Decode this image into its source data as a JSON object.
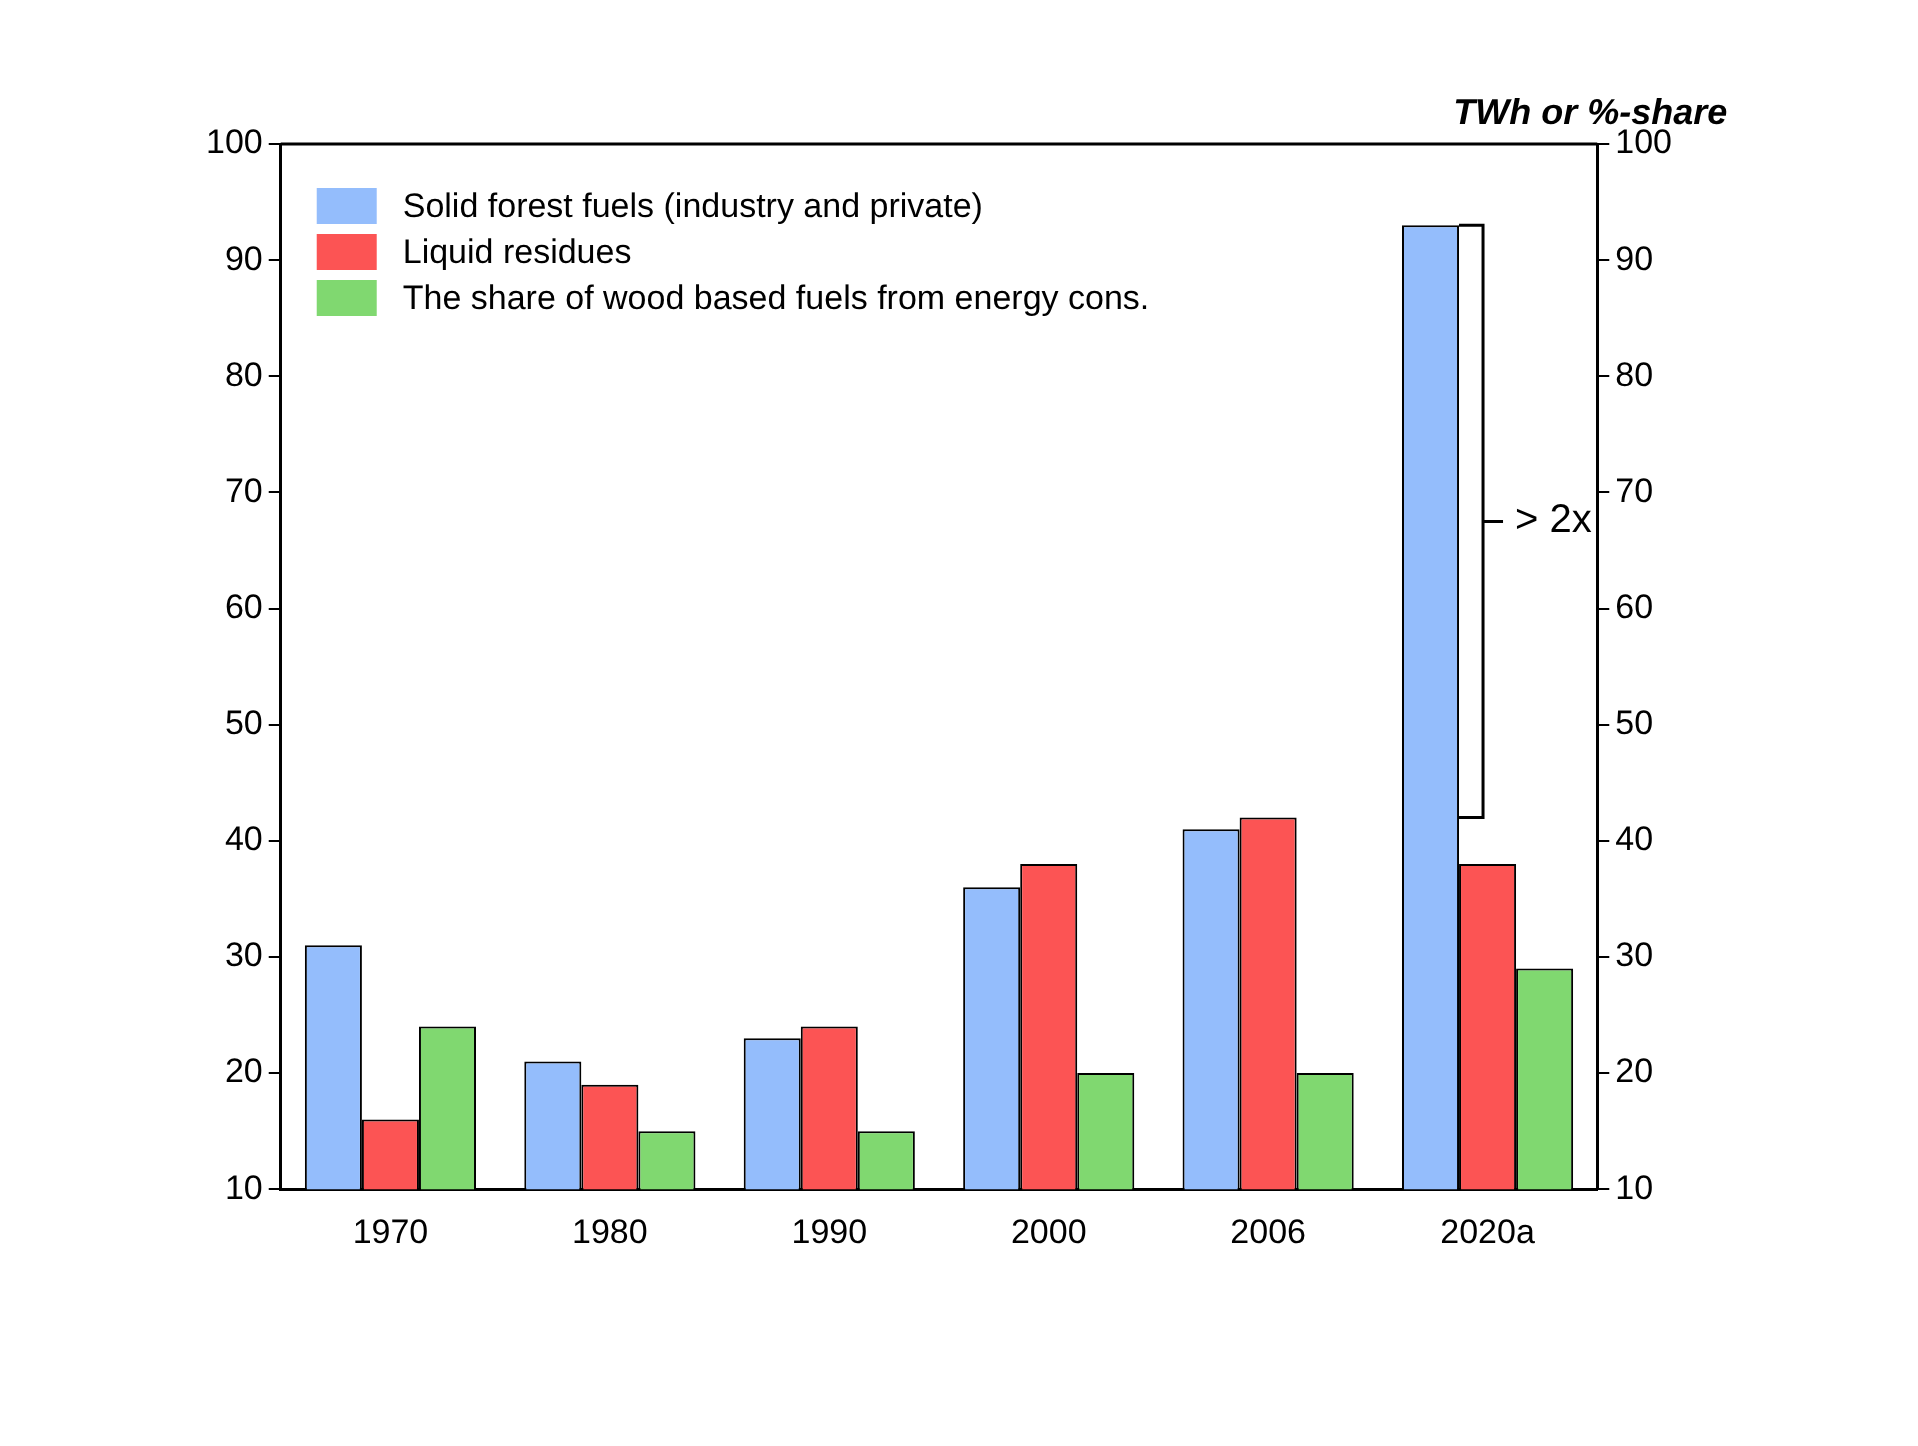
{
  "chart_data": {
    "type": "bar",
    "y2label": "TWh or %-share",
    "categories": [
      "1970",
      "1980",
      "1990",
      "2000",
      "2006",
      "2020a"
    ],
    "series": [
      {
        "name": "Solid forest fuels (industry and private)",
        "color": "#94bdfc",
        "values": [
          31,
          21,
          23,
          36,
          41,
          93
        ]
      },
      {
        "name": "Liquid residues",
        "color": "#fc5454",
        "values": [
          16,
          19,
          24,
          38,
          42,
          38
        ]
      },
      {
        "name": "The share of wood based fuels from energy cons.",
        "color": "#80d870",
        "values": [
          24,
          15,
          15,
          20,
          20,
          29
        ]
      }
    ],
    "ylim": [
      10,
      100
    ],
    "yticks": [
      10,
      20,
      30,
      40,
      50,
      60,
      70,
      80,
      90,
      100
    ],
    "y2lim": [
      10,
      100
    ],
    "y2ticks": [
      10,
      20,
      30,
      40,
      50,
      60,
      70,
      80,
      90,
      100
    ],
    "annotations": [
      "> 2x"
    ],
    "grid": false,
    "legend": "top left"
  }
}
